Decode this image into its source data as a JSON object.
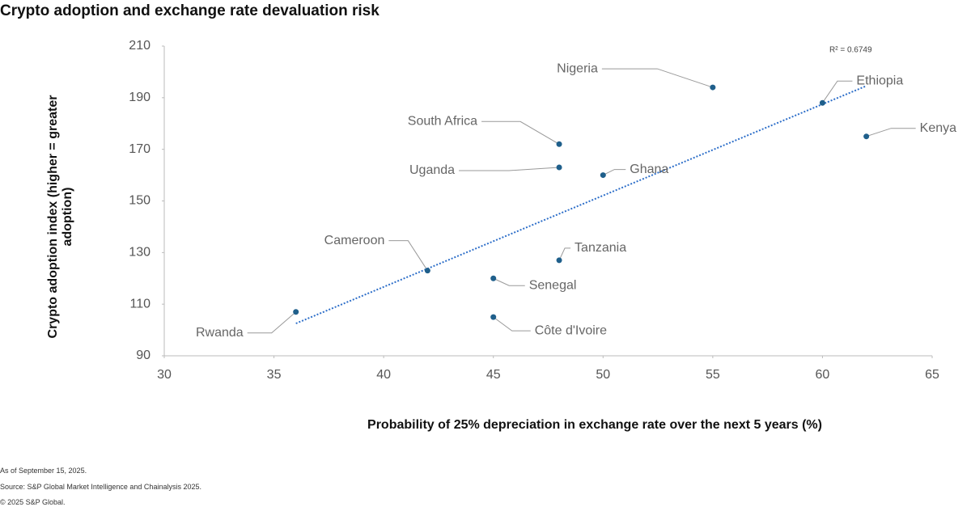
{
  "chart_data": {
    "type": "scatter",
    "title": "Crypto adoption and exchange rate devaluation risk",
    "x_label": "Probability of 25% depreciation in exchange rate over the next 5 years (%)",
    "y_label": "Crypto adoption index (higher = greater adoption)",
    "xlim": [
      30,
      65
    ],
    "xticks": [
      30,
      35,
      40,
      45,
      50,
      55,
      60,
      65
    ],
    "ylim": [
      90,
      210
    ],
    "yticks": [
      90,
      110,
      130,
      150,
      170,
      190,
      210
    ],
    "grid": false,
    "color": "#1f5f8b",
    "trendline": true,
    "trendline_color": "#2e6fc9",
    "trendline_label": "R² = 0.6749",
    "labels": [
      "Rwanda",
      "Cameroon",
      "Nigeria",
      "Ethiopia",
      "Kenya",
      "South Africa",
      "Uganda",
      "Ghana",
      "Tanzania",
      "Senegal",
      "Côte d'Ivoire"
    ],
    "x": [
      36,
      42,
      55,
      60,
      62,
      48,
      48,
      50,
      48,
      45,
      45
    ],
    "y": [
      107,
      123,
      194,
      188,
      175,
      172,
      163,
      160,
      127,
      120,
      105
    ]
  },
  "notes": [
    "As of September 15, 2025.",
    "Source: S&P Global Market Intelligence and Chainalysis 2025.",
    "© 2025 S&P Global."
  ]
}
